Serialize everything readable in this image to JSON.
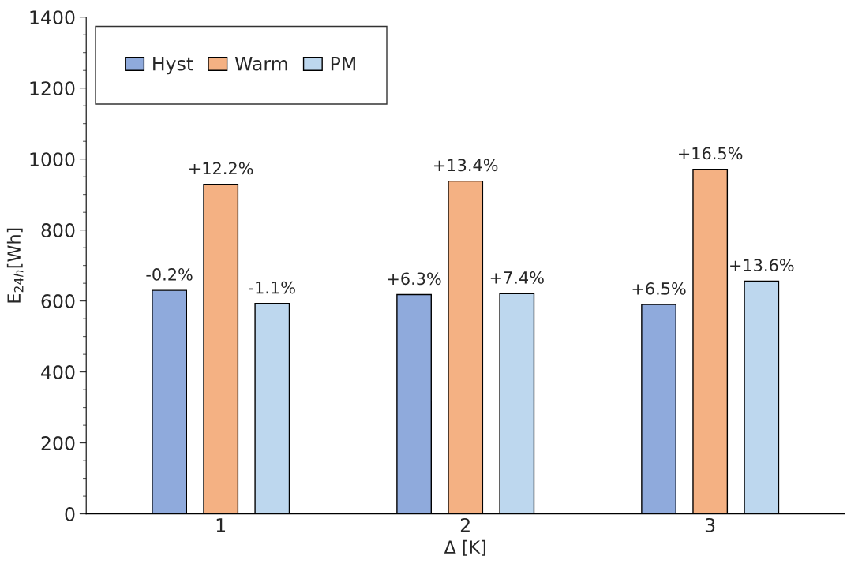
{
  "chart_data": {
    "type": "bar",
    "xlabel": "Δ [K]",
    "ylabel": "E$_{24h}$[Wh]",
    "categories": [
      "1",
      "2",
      "3"
    ],
    "series": [
      {
        "name": "Hyst",
        "color": "#8faadc",
        "values": [
          630,
          618,
          590
        ]
      },
      {
        "name": "Warm",
        "color": "#f4b183",
        "values": [
          929,
          938,
          971
        ]
      },
      {
        "name": "PM",
        "color": "#bdd7ee",
        "values": [
          593,
          621,
          656
        ]
      }
    ],
    "annotations": [
      "-0.2%",
      "+6.3%",
      "+6.5%",
      "+12.2%",
      "+13.4%",
      "+16.5%",
      "-1.1%",
      "+7.4%",
      "+13.6%"
    ],
    "ylim": [
      0,
      1400
    ],
    "yticks": [
      0,
      200,
      400,
      600,
      800,
      1000,
      1200,
      1400
    ],
    "grid": false,
    "legend": "top left"
  }
}
